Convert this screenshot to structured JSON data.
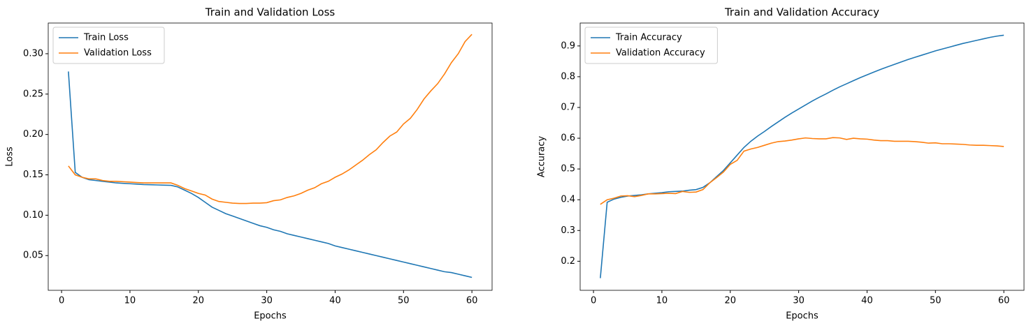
{
  "chart_data": [
    {
      "type": "line",
      "title": "Train and Validation Loss",
      "xlabel": "Epochs",
      "ylabel": "Loss",
      "legend": "upper left",
      "x": [
        1,
        2,
        3,
        4,
        5,
        6,
        7,
        8,
        9,
        10,
        11,
        12,
        13,
        14,
        15,
        16,
        17,
        18,
        19,
        20,
        21,
        22,
        23,
        24,
        25,
        26,
        27,
        28,
        29,
        30,
        31,
        32,
        33,
        34,
        35,
        36,
        37,
        38,
        39,
        40,
        41,
        42,
        43,
        44,
        45,
        46,
        47,
        48,
        49,
        50,
        51,
        52,
        53,
        54,
        55,
        56,
        57,
        58,
        59,
        60
      ],
      "xlim": [
        -1.95,
        62.95
      ],
      "xticks": [
        0,
        10,
        20,
        30,
        40,
        50,
        60
      ],
      "ylim": [
        0.007,
        0.338
      ],
      "yticks": [
        0.05,
        {
          "value": 0.1,
          "label": "0.10"
        },
        0.15,
        {
          "value": 0.2,
          "label": "0.20"
        },
        0.25,
        {
          "value": 0.3,
          "label": "0.30"
        }
      ],
      "series": [
        {
          "name": "Train Loss",
          "color": "#1f77b4",
          "values": [
            0.278,
            0.153,
            0.147,
            0.144,
            0.143,
            0.142,
            0.141,
            0.14,
            0.1395,
            0.139,
            0.1385,
            0.138,
            0.1378,
            0.1375,
            0.1372,
            0.137,
            0.135,
            0.131,
            0.127,
            0.122,
            0.116,
            0.11,
            0.106,
            0.102,
            0.099,
            0.096,
            0.093,
            0.09,
            0.087,
            0.085,
            0.082,
            0.08,
            0.077,
            0.075,
            0.073,
            0.071,
            0.069,
            0.067,
            0.065,
            0.062,
            0.06,
            0.058,
            0.056,
            0.054,
            0.052,
            0.05,
            0.048,
            0.046,
            0.044,
            0.042,
            0.04,
            0.038,
            0.036,
            0.034,
            0.032,
            0.03,
            0.029,
            0.027,
            0.025,
            0.023
          ]
        },
        {
          "name": "Validation Loss",
          "color": "#ff7f0e",
          "values": [
            0.161,
            0.15,
            0.147,
            0.145,
            0.145,
            0.143,
            0.142,
            0.142,
            0.1415,
            0.141,
            0.1405,
            0.14,
            0.14,
            0.14,
            0.14,
            0.14,
            0.137,
            0.133,
            0.13,
            0.127,
            0.125,
            0.12,
            0.117,
            0.116,
            0.115,
            0.1145,
            0.1145,
            0.115,
            0.115,
            0.1155,
            0.118,
            0.119,
            0.122,
            0.124,
            0.127,
            0.131,
            0.134,
            0.139,
            0.142,
            0.147,
            0.151,
            0.156,
            0.162,
            0.168,
            0.175,
            0.181,
            0.19,
            0.198,
            0.203,
            0.213,
            0.22,
            0.231,
            0.244,
            0.254,
            0.263,
            0.275,
            0.289,
            0.3,
            0.315,
            0.324
          ]
        }
      ]
    },
    {
      "type": "line",
      "title": "Train and Validation Accuracy",
      "xlabel": "Epochs",
      "ylabel": "Accuracy",
      "legend": "upper left",
      "x": [
        1,
        2,
        3,
        4,
        5,
        6,
        7,
        8,
        9,
        10,
        11,
        12,
        13,
        14,
        15,
        16,
        17,
        18,
        19,
        20,
        21,
        22,
        23,
        24,
        25,
        26,
        27,
        28,
        29,
        30,
        31,
        32,
        33,
        34,
        35,
        36,
        37,
        38,
        39,
        40,
        41,
        42,
        43,
        44,
        45,
        46,
        47,
        48,
        49,
        50,
        51,
        52,
        53,
        54,
        55,
        56,
        57,
        58,
        59,
        60
      ],
      "xlim": [
        -1.95,
        62.95
      ],
      "xticks": [
        0,
        10,
        20,
        30,
        40,
        50,
        60
      ],
      "ylim": [
        0.1055,
        0.9745
      ],
      "yticks": [
        0.2,
        0.3,
        0.4,
        0.5,
        0.6,
        0.7,
        0.8,
        0.9
      ],
      "series": [
        {
          "name": "Train Accuracy",
          "color": "#1f77b4",
          "values": [
            0.145,
            0.392,
            0.402,
            0.408,
            0.412,
            0.414,
            0.416,
            0.419,
            0.421,
            0.423,
            0.426,
            0.427,
            0.428,
            0.431,
            0.433,
            0.44,
            0.455,
            0.475,
            0.495,
            0.52,
            0.545,
            0.57,
            0.59,
            0.607,
            0.622,
            0.638,
            0.653,
            0.668,
            0.682,
            0.695,
            0.708,
            0.721,
            0.733,
            0.744,
            0.756,
            0.767,
            0.777,
            0.787,
            0.797,
            0.806,
            0.815,
            0.824,
            0.832,
            0.84,
            0.848,
            0.856,
            0.863,
            0.87,
            0.877,
            0.884,
            0.89,
            0.896,
            0.902,
            0.908,
            0.913,
            0.918,
            0.923,
            0.928,
            0.932,
            0.935
          ]
        },
        {
          "name": "Validation Accuracy",
          "color": "#ff7f0e",
          "values": [
            0.385,
            0.4,
            0.405,
            0.412,
            0.413,
            0.41,
            0.414,
            0.419,
            0.419,
            0.42,
            0.421,
            0.42,
            0.427,
            0.424,
            0.425,
            0.433,
            0.455,
            0.472,
            0.49,
            0.515,
            0.528,
            0.558,
            0.565,
            0.57,
            0.577,
            0.584,
            0.589,
            0.591,
            0.594,
            0.598,
            0.601,
            0.599,
            0.598,
            0.598,
            0.602,
            0.601,
            0.596,
            0.6,
            0.598,
            0.597,
            0.594,
            0.592,
            0.592,
            0.59,
            0.59,
            0.59,
            0.589,
            0.587,
            0.584,
            0.585,
            0.582,
            0.582,
            0.581,
            0.58,
            0.578,
            0.577,
            0.577,
            0.576,
            0.575,
            0.573
          ]
        }
      ]
    }
  ]
}
